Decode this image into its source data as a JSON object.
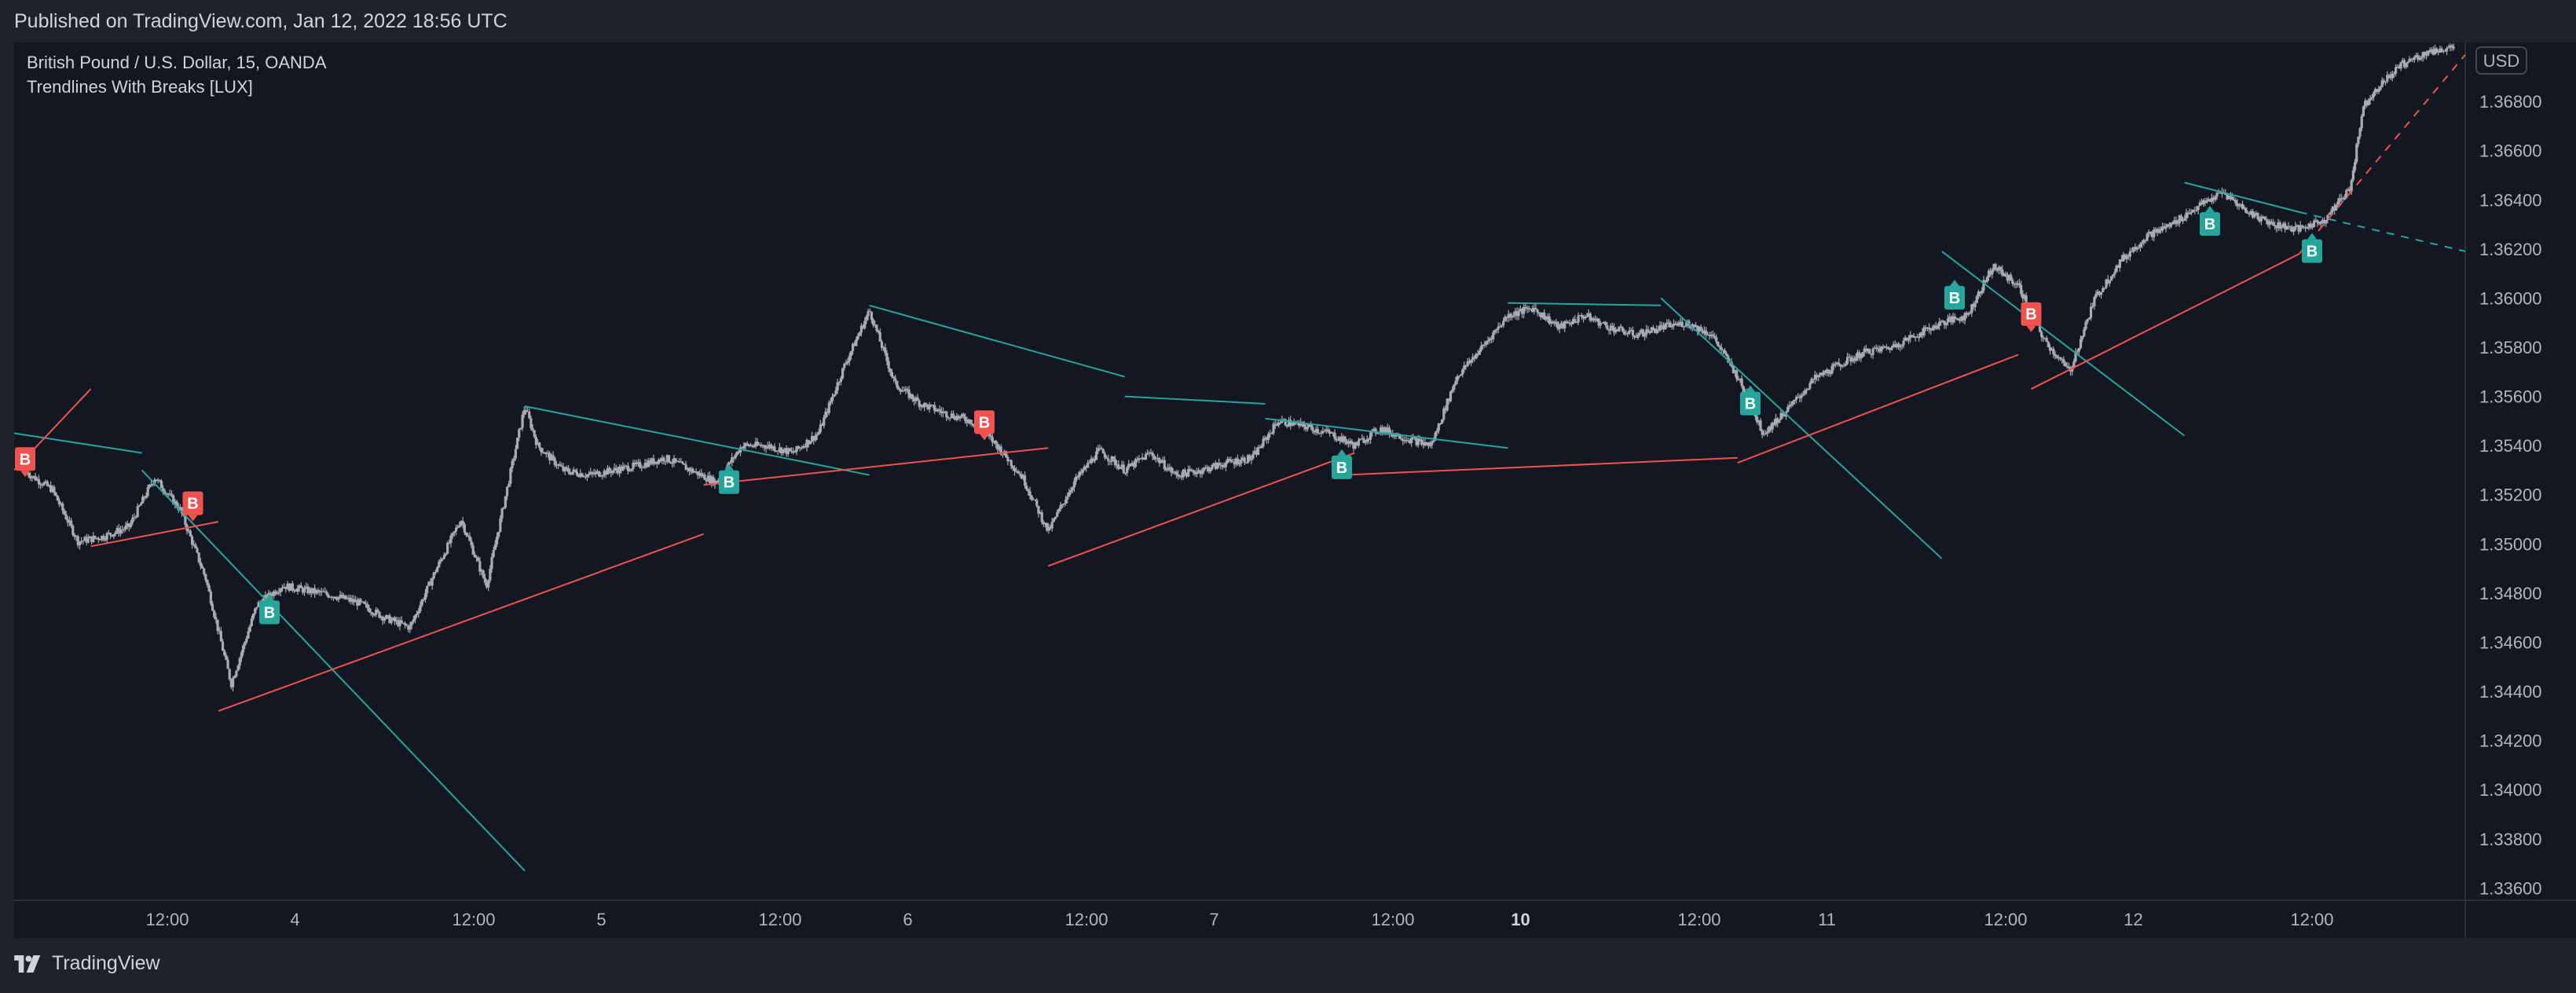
{
  "header": {
    "published_text": "Published on TradingView.com, Jan 12, 2022 18:56 UTC"
  },
  "legend": {
    "symbol": "British Pound / U.S. Dollar, 15, OANDA",
    "indicator": "Trendlines With Breaks [LUX]"
  },
  "footer": {
    "brand": "TradingView"
  },
  "colors": {
    "background": "#131722",
    "panel": "#1e222d",
    "candles": "#a8abb3",
    "upper_trendline": "#26a69a",
    "lower_trendline": "#ef5350",
    "break_up_badge": "#26a69a",
    "break_down_badge": "#ef5350",
    "text": "#d1d4dc"
  },
  "chart_data": {
    "type": "candlestick",
    "symbol": "GBPUSD",
    "interval": "15",
    "currency_label": "USD",
    "y_axis": {
      "ticks": [
        "1.33600",
        "1.33800",
        "1.34000",
        "1.34200",
        "1.34400",
        "1.34600",
        "1.34800",
        "1.35000",
        "1.35200",
        "1.35400",
        "1.35600",
        "1.35800",
        "1.36000",
        "1.36200",
        "1.36400",
        "1.36600",
        "1.36800"
      ],
      "range": [
        1.3355,
        1.3704
      ]
    },
    "x_axis": {
      "ticks": [
        {
          "label": "12:00",
          "t": 5.5,
          "bold": false
        },
        {
          "label": "4",
          "t": 10.5,
          "bold": false
        },
        {
          "label": "12:00",
          "t": 17.5,
          "bold": false
        },
        {
          "label": "5",
          "t": 22.5,
          "bold": false
        },
        {
          "label": "12:00",
          "t": 29.5,
          "bold": false
        },
        {
          "label": "6",
          "t": 34.5,
          "bold": false
        },
        {
          "label": "12:00",
          "t": 41.5,
          "bold": false
        },
        {
          "label": "7",
          "t": 46.5,
          "bold": false
        },
        {
          "label": "12:00",
          "t": 53.5,
          "bold": false
        },
        {
          "label": "10",
          "t": 58.5,
          "bold": true
        },
        {
          "label": "12:00",
          "t": 65.5,
          "bold": false
        },
        {
          "label": "11",
          "t": 70.5,
          "bold": false
        },
        {
          "label": "12:00",
          "t": 77.5,
          "bold": false
        },
        {
          "label": "12",
          "t": 82.5,
          "bold": false
        },
        {
          "label": "12:00",
          "t": 89.5,
          "bold": false
        }
      ],
      "range": [
        -0.5,
        95.5
      ]
    },
    "price_path": [
      [
        0,
        1.3529
      ],
      [
        1,
        1.3522
      ],
      [
        2,
        1.3501
      ],
      [
        3,
        1.3503
      ],
      [
        4,
        1.3507
      ],
      [
        5,
        1.3527
      ],
      [
        6,
        1.3514
      ],
      [
        7,
        1.3486
      ],
      [
        8,
        1.3443
      ],
      [
        9,
        1.3475
      ],
      [
        10,
        1.3483
      ],
      [
        11,
        1.3481
      ],
      [
        12,
        1.3479
      ],
      [
        13,
        1.3476
      ],
      [
        14,
        1.347
      ],
      [
        15,
        1.3466
      ],
      [
        16,
        1.3489
      ],
      [
        17,
        1.351
      ],
      [
        18,
        1.3483
      ],
      [
        19,
        1.3532
      ],
      [
        19.5,
        1.3556
      ],
      [
        20,
        1.354
      ],
      [
        21,
        1.353
      ],
      [
        22,
        1.3528
      ],
      [
        23,
        1.353
      ],
      [
        24,
        1.3532
      ],
      [
        25,
        1.3535
      ],
      [
        26,
        1.353
      ],
      [
        27,
        1.3525
      ],
      [
        28,
        1.354
      ],
      [
        29,
        1.354
      ],
      [
        30,
        1.3537
      ],
      [
        31,
        1.3545
      ],
      [
        32,
        1.3572
      ],
      [
        33,
        1.3595
      ],
      [
        34,
        1.3565
      ],
      [
        35,
        1.3557
      ],
      [
        36,
        1.3553
      ],
      [
        37,
        1.355
      ],
      [
        38,
        1.354
      ],
      [
        39,
        1.3527
      ],
      [
        40,
        1.3505
      ],
      [
        41,
        1.3525
      ],
      [
        42,
        1.3538
      ],
      [
        43,
        1.353
      ],
      [
        44,
        1.3537
      ],
      [
        45,
        1.3528
      ],
      [
        46,
        1.353
      ],
      [
        47,
        1.3533
      ],
      [
        48,
        1.3535
      ],
      [
        49,
        1.355
      ],
      [
        50,
        1.3548
      ],
      [
        51,
        1.3545
      ],
      [
        52,
        1.354
      ],
      [
        53,
        1.3547
      ],
      [
        54,
        1.3543
      ],
      [
        55,
        1.354
      ],
      [
        56,
        1.3568
      ],
      [
        57,
        1.358
      ],
      [
        58,
        1.3593
      ],
      [
        59,
        1.3596
      ],
      [
        60,
        1.3588
      ],
      [
        61,
        1.3593
      ],
      [
        62,
        1.3588
      ],
      [
        63,
        1.3585
      ],
      [
        64,
        1.3588
      ],
      [
        65,
        1.359
      ],
      [
        66,
        1.3585
      ],
      [
        67,
        1.3568
      ],
      [
        68,
        1.3545
      ],
      [
        69,
        1.3555
      ],
      [
        70,
        1.3567
      ],
      [
        71,
        1.3573
      ],
      [
        72,
        1.3578
      ],
      [
        73,
        1.358
      ],
      [
        74,
        1.3585
      ],
      [
        75,
        1.359
      ],
      [
        76,
        1.3593
      ],
      [
        77,
        1.3613
      ],
      [
        78,
        1.3605
      ],
      [
        79,
        1.3583
      ],
      [
        80,
        1.357
      ],
      [
        81,
        1.36
      ],
      [
        82,
        1.3615
      ],
      [
        83,
        1.3625
      ],
      [
        84,
        1.363
      ],
      [
        85,
        1.3637
      ],
      [
        86,
        1.3643
      ],
      [
        87,
        1.3635
      ],
      [
        88,
        1.363
      ],
      [
        89,
        1.3628
      ],
      [
        90,
        1.3632
      ],
      [
        91,
        1.3645
      ],
      [
        91.5,
        1.3678
      ],
      [
        92,
        1.3685
      ],
      [
        93,
        1.3695
      ],
      [
        94,
        1.37
      ],
      [
        95,
        1.3702
      ]
    ],
    "upper_trendlines": [
      {
        "from": [
          -0.5,
          1.3545
        ],
        "to": [
          4.5,
          1.3537
        ],
        "style": "solid"
      },
      {
        "from": [
          4.5,
          1.353
        ],
        "to": [
          19.5,
          1.3367
        ],
        "style": "solid"
      },
      {
        "from": [
          19.5,
          1.3556
        ],
        "to": [
          33,
          1.3528
        ],
        "style": "solid"
      },
      {
        "from": [
          33,
          1.3597
        ],
        "to": [
          43,
          1.3568
        ],
        "style": "solid"
      },
      {
        "from": [
          43,
          1.356
        ],
        "to": [
          48.5,
          1.3557
        ],
        "style": "solid"
      },
      {
        "from": [
          48.5,
          1.3551
        ],
        "to": [
          58,
          1.3539
        ],
        "style": "solid"
      },
      {
        "from": [
          58,
          1.3598
        ],
        "to": [
          64,
          1.3597
        ],
        "style": "solid"
      },
      {
        "from": [
          64,
          1.36
        ],
        "to": [
          75,
          1.3494
        ],
        "style": "solid"
      },
      {
        "from": [
          75,
          1.3619
        ],
        "to": [
          84.5,
          1.3544
        ],
        "style": "solid"
      },
      {
        "from": [
          84.5,
          1.3647
        ],
        "to": [
          89,
          1.3635
        ],
        "style": "solid"
      },
      {
        "from": [
          89,
          1.3635
        ],
        "to": [
          95.5,
          1.3619
        ],
        "style": "dashed"
      }
    ],
    "lower_trendlines": [
      {
        "from": [
          -0.5,
          1.353
        ],
        "to": [
          2.5,
          1.3563
        ],
        "style": "solid"
      },
      {
        "from": [
          2.5,
          1.3499
        ],
        "to": [
          7.5,
          1.3509
        ],
        "style": "solid"
      },
      {
        "from": [
          7.5,
          1.3432
        ],
        "to": [
          26.5,
          1.3504
        ],
        "style": "solid"
      },
      {
        "from": [
          26.5,
          1.3524
        ],
        "to": [
          40,
          1.3539
        ],
        "style": "solid"
      },
      {
        "from": [
          40,
          1.3491
        ],
        "to": [
          52,
          1.3537
        ],
        "style": "solid"
      },
      {
        "from": [
          51.5,
          1.3528
        ],
        "to": [
          67,
          1.3535
        ],
        "style": "solid"
      },
      {
        "from": [
          67,
          1.3533
        ],
        "to": [
          78,
          1.3577
        ],
        "style": "solid"
      },
      {
        "from": [
          78.5,
          1.3563
        ],
        "to": [
          89,
          1.3618
        ],
        "style": "solid"
      },
      {
        "from": [
          89,
          1.3618
        ],
        "to": [
          95.5,
          1.3699
        ],
        "style": "dashed"
      }
    ],
    "break_signals": [
      {
        "label": "B",
        "direction": "down",
        "t": -0.5,
        "price": 1.3531
      },
      {
        "label": "B",
        "direction": "down",
        "t": 6.5,
        "price": 1.3513
      },
      {
        "label": "B",
        "direction": "up",
        "t": 9.5,
        "price": 1.3475
      },
      {
        "label": "B",
        "direction": "up",
        "t": 27.5,
        "price": 1.3528
      },
      {
        "label": "B",
        "direction": "down",
        "t": 37.5,
        "price": 1.3546
      },
      {
        "label": "B",
        "direction": "up",
        "t": 51.5,
        "price": 1.3534
      },
      {
        "label": "B",
        "direction": "up",
        "t": 67.5,
        "price": 1.356
      },
      {
        "label": "B",
        "direction": "up",
        "t": 75.5,
        "price": 1.3603
      },
      {
        "label": "B",
        "direction": "down",
        "t": 78.5,
        "price": 1.359
      },
      {
        "label": "B",
        "direction": "up",
        "t": 85.5,
        "price": 1.3633
      },
      {
        "label": "B",
        "direction": "up",
        "t": 89.5,
        "price": 1.3622
      }
    ]
  }
}
